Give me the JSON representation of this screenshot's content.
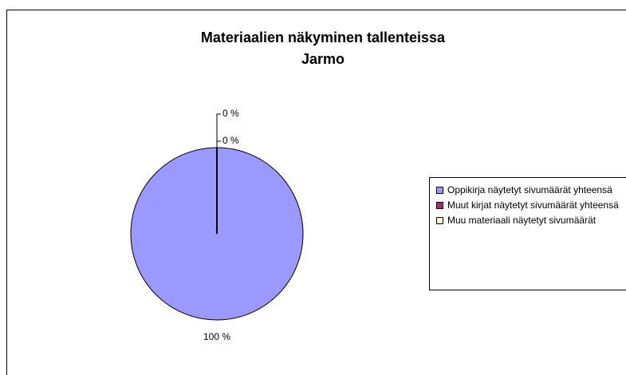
{
  "chart_data": {
    "type": "pie",
    "title": [
      "Materiaalien näkyminen tallenteissa",
      "Jarmo"
    ],
    "categories": [
      "Oppikirja näytetyt sivumäärät yhteensä",
      "Muut kirjat näytetyt sivumäärät yhteensä",
      "Muu materiaali näytetyt sivumäärät"
    ],
    "values": [
      100,
      0,
      0
    ],
    "value_labels": [
      "100 %",
      "0 %",
      "0 %"
    ],
    "colors": [
      "#9999ff",
      "#993366",
      "#ffffcc"
    ],
    "legend": "right"
  }
}
